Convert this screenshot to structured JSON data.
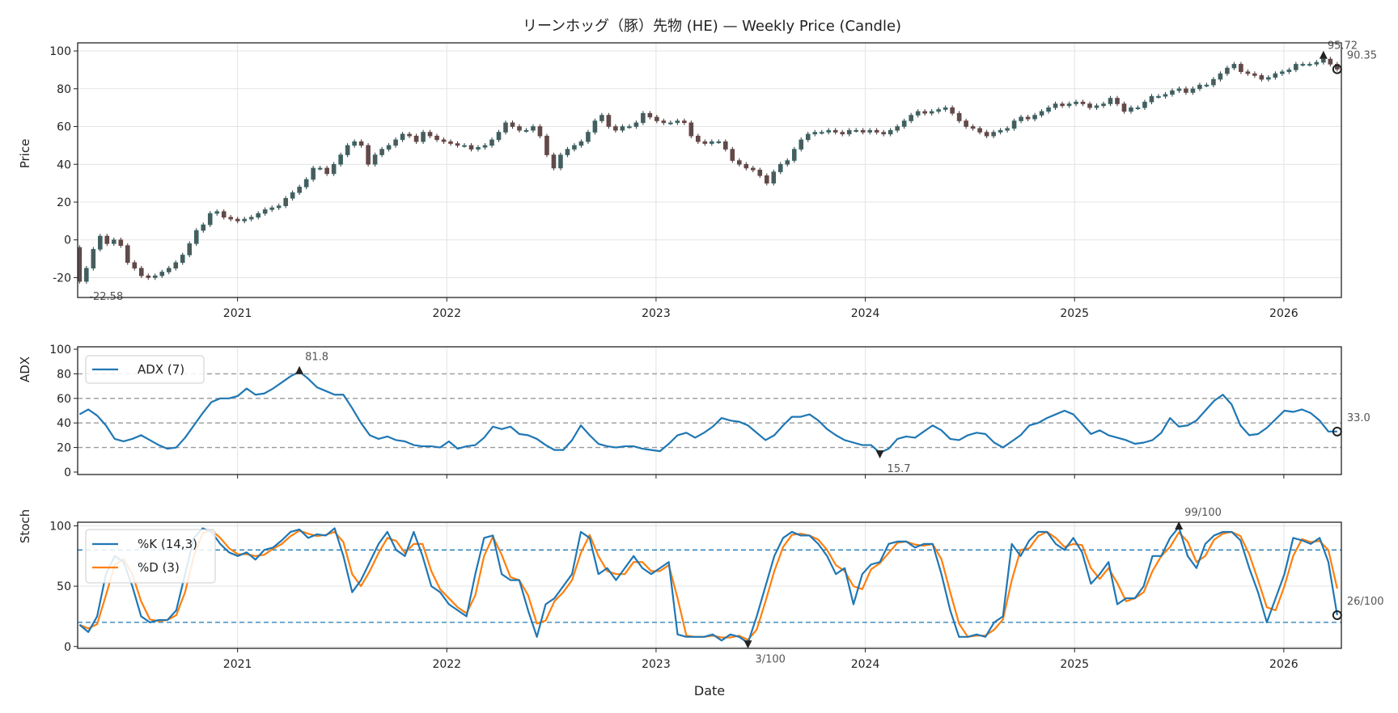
{
  "chart_data": [
    {
      "type": "candlestick",
      "title": "リーンホッグ（豚）先物 (HE) — Weekly Price (Candle)",
      "ylabel": "Price",
      "ylim": [
        -30.5,
        104.3
      ],
      "yticks": [
        -20,
        0,
        20,
        40,
        60,
        80,
        100
      ],
      "ytick_labels": [
        "-20",
        "0",
        "20",
        "40",
        "60",
        "80",
        "100"
      ],
      "xlim": [
        2020.236,
        2026.275
      ],
      "x_range": [
        2020.245,
        2026.255
      ],
      "xticks": [
        2021,
        2022,
        2023,
        2024,
        2025,
        2026
      ],
      "xtick_labels": [
        "2021",
        "2022",
        "2023",
        "2024",
        "2025",
        "2026"
      ],
      "grid": true,
      "first_open": -4,
      "closes": [
        -22,
        -15,
        -5,
        2,
        -2,
        0,
        -3,
        -12,
        -15,
        -19,
        -20,
        -19,
        -17,
        -15,
        -12,
        -8,
        -2,
        5,
        8,
        14,
        15,
        12,
        11,
        10,
        11,
        12,
        14,
        16,
        17,
        18,
        22,
        25,
        28,
        32,
        38,
        38,
        35,
        40,
        45,
        50,
        52,
        50,
        40,
        45,
        48,
        50,
        53,
        56,
        55,
        52,
        57,
        55,
        53,
        52,
        51,
        50,
        50,
        48,
        49,
        50,
        53,
        57,
        62,
        60,
        58,
        58,
        60,
        55,
        45,
        38,
        45,
        48,
        50,
        52,
        57,
        63,
        66,
        60,
        58,
        60,
        60,
        62,
        67,
        65,
        63,
        62,
        62,
        63,
        62,
        55,
        52,
        51,
        52,
        52,
        48,
        42,
        40,
        38,
        37,
        34,
        30,
        36,
        40,
        42,
        48,
        53,
        56,
        57,
        57,
        58,
        57,
        56,
        58,
        58,
        57,
        58,
        57,
        56,
        58,
        60,
        63,
        66,
        68,
        67,
        68,
        69,
        70,
        67,
        63,
        60,
        59,
        57,
        55,
        57,
        58,
        59,
        63,
        65,
        64,
        66,
        68,
        70,
        72,
        71,
        72,
        73,
        72,
        70,
        71,
        72,
        75,
        72,
        68,
        70,
        70,
        73,
        76,
        76,
        77,
        79,
        80,
        78,
        80,
        82,
        82,
        85,
        88,
        91,
        93,
        89,
        88,
        87,
        85,
        86,
        88,
        89,
        90,
        93,
        93,
        93,
        94,
        95.72,
        93,
        90.35
      ],
      "annotations": {
        "max": "95.72",
        "last": "90.35",
        "min": "-22.58"
      }
    },
    {
      "type": "line",
      "ylabel": "ADX",
      "ylim": [
        -2,
        102
      ],
      "yticks": [
        0,
        20,
        40,
        60,
        80,
        100
      ],
      "ytick_labels": [
        "0",
        "20",
        "40",
        "60",
        "80",
        "100"
      ],
      "reference_lines": [
        20,
        40,
        60,
        80
      ],
      "x_range": [
        2020.245,
        2026.255
      ],
      "series": [
        {
          "name": "ADX (7)",
          "color": "#1f77b4",
          "values": [
            47,
            51,
            46,
            38,
            27,
            25,
            27,
            30,
            26,
            22,
            19,
            20,
            28,
            38,
            48,
            57,
            60,
            60,
            62,
            68,
            63,
            64,
            68,
            73,
            78,
            81.8,
            76,
            69,
            66,
            63,
            63,
            52,
            40,
            30,
            27,
            29,
            26,
            25,
            22,
            21,
            21,
            20,
            25,
            19,
            21,
            22,
            28,
            37,
            35,
            37,
            31,
            30,
            27,
            22,
            18,
            18,
            26,
            38,
            30,
            23,
            21,
            20,
            21,
            21,
            19,
            18,
            17,
            23,
            30,
            32,
            28,
            32,
            37,
            44,
            42,
            41,
            38,
            32,
            26,
            30,
            38,
            45,
            45,
            47,
            42,
            35,
            30,
            26,
            24,
            22,
            22,
            15.7,
            19,
            27,
            29,
            28,
            33,
            38,
            34,
            27,
            26,
            30,
            32,
            31,
            24,
            20,
            25,
            30,
            38,
            40,
            44,
            47,
            50,
            47,
            39,
            31,
            34,
            30,
            28,
            26,
            23,
            24,
            26,
            32,
            44,
            37,
            38,
            42,
            50,
            58,
            63,
            55,
            38,
            30,
            31,
            36,
            43,
            50,
            49,
            51,
            48,
            42,
            33,
            33.0
          ]
        }
      ],
      "annotations": {
        "max": "81.8",
        "min": "15.7",
        "last": "33.0"
      }
    },
    {
      "type": "line",
      "ylabel": "Stoch",
      "xlabel": "Date",
      "ylim": [
        -1.5,
        103
      ],
      "yticks": [
        0,
        50,
        100
      ],
      "ytick_labels": [
        "0",
        "50",
        "100"
      ],
      "reference_lines": [
        20,
        80
      ],
      "x_range": [
        2020.245,
        2026.255
      ],
      "series": [
        {
          "name": "%K (14,3)",
          "color": "#1f77b4",
          "values": [
            18,
            12,
            25,
            60,
            75,
            70,
            50,
            25,
            20,
            22,
            22,
            30,
            60,
            90,
            98,
            95,
            85,
            78,
            75,
            78,
            72,
            80,
            82,
            88,
            95,
            97,
            90,
            93,
            92,
            98,
            75,
            45,
            55,
            70,
            85,
            95,
            80,
            75,
            95,
            75,
            50,
            45,
            35,
            30,
            25,
            60,
            90,
            92,
            60,
            55,
            55,
            30,
            8,
            35,
            40,
            50,
            60,
            95,
            90,
            60,
            65,
            55,
            65,
            75,
            65,
            60,
            65,
            70,
            10,
            8,
            8,
            8,
            10,
            5,
            10,
            8,
            3,
            25,
            50,
            75,
            90,
            95,
            92,
            92,
            85,
            75,
            60,
            65,
            35,
            60,
            68,
            70,
            85,
            87,
            87,
            82,
            85,
            85,
            60,
            30,
            8,
            8,
            10,
            8,
            20,
            25,
            85,
            75,
            88,
            95,
            95,
            85,
            80,
            90,
            78,
            52,
            60,
            70,
            35,
            40,
            40,
            50,
            75,
            75,
            90,
            99,
            75,
            65,
            85,
            92,
            95,
            95,
            88,
            65,
            45,
            20,
            40,
            60,
            90,
            88,
            85,
            90,
            70,
            26
          ]
        },
        {
          "name": "%D (3)",
          "color": "#ff7f0e",
          "derived_from": "%K (14,3)"
        }
      ],
      "annotations": {
        "max": "99/100",
        "min": "3/100",
        "last": "26/100"
      }
    }
  ]
}
